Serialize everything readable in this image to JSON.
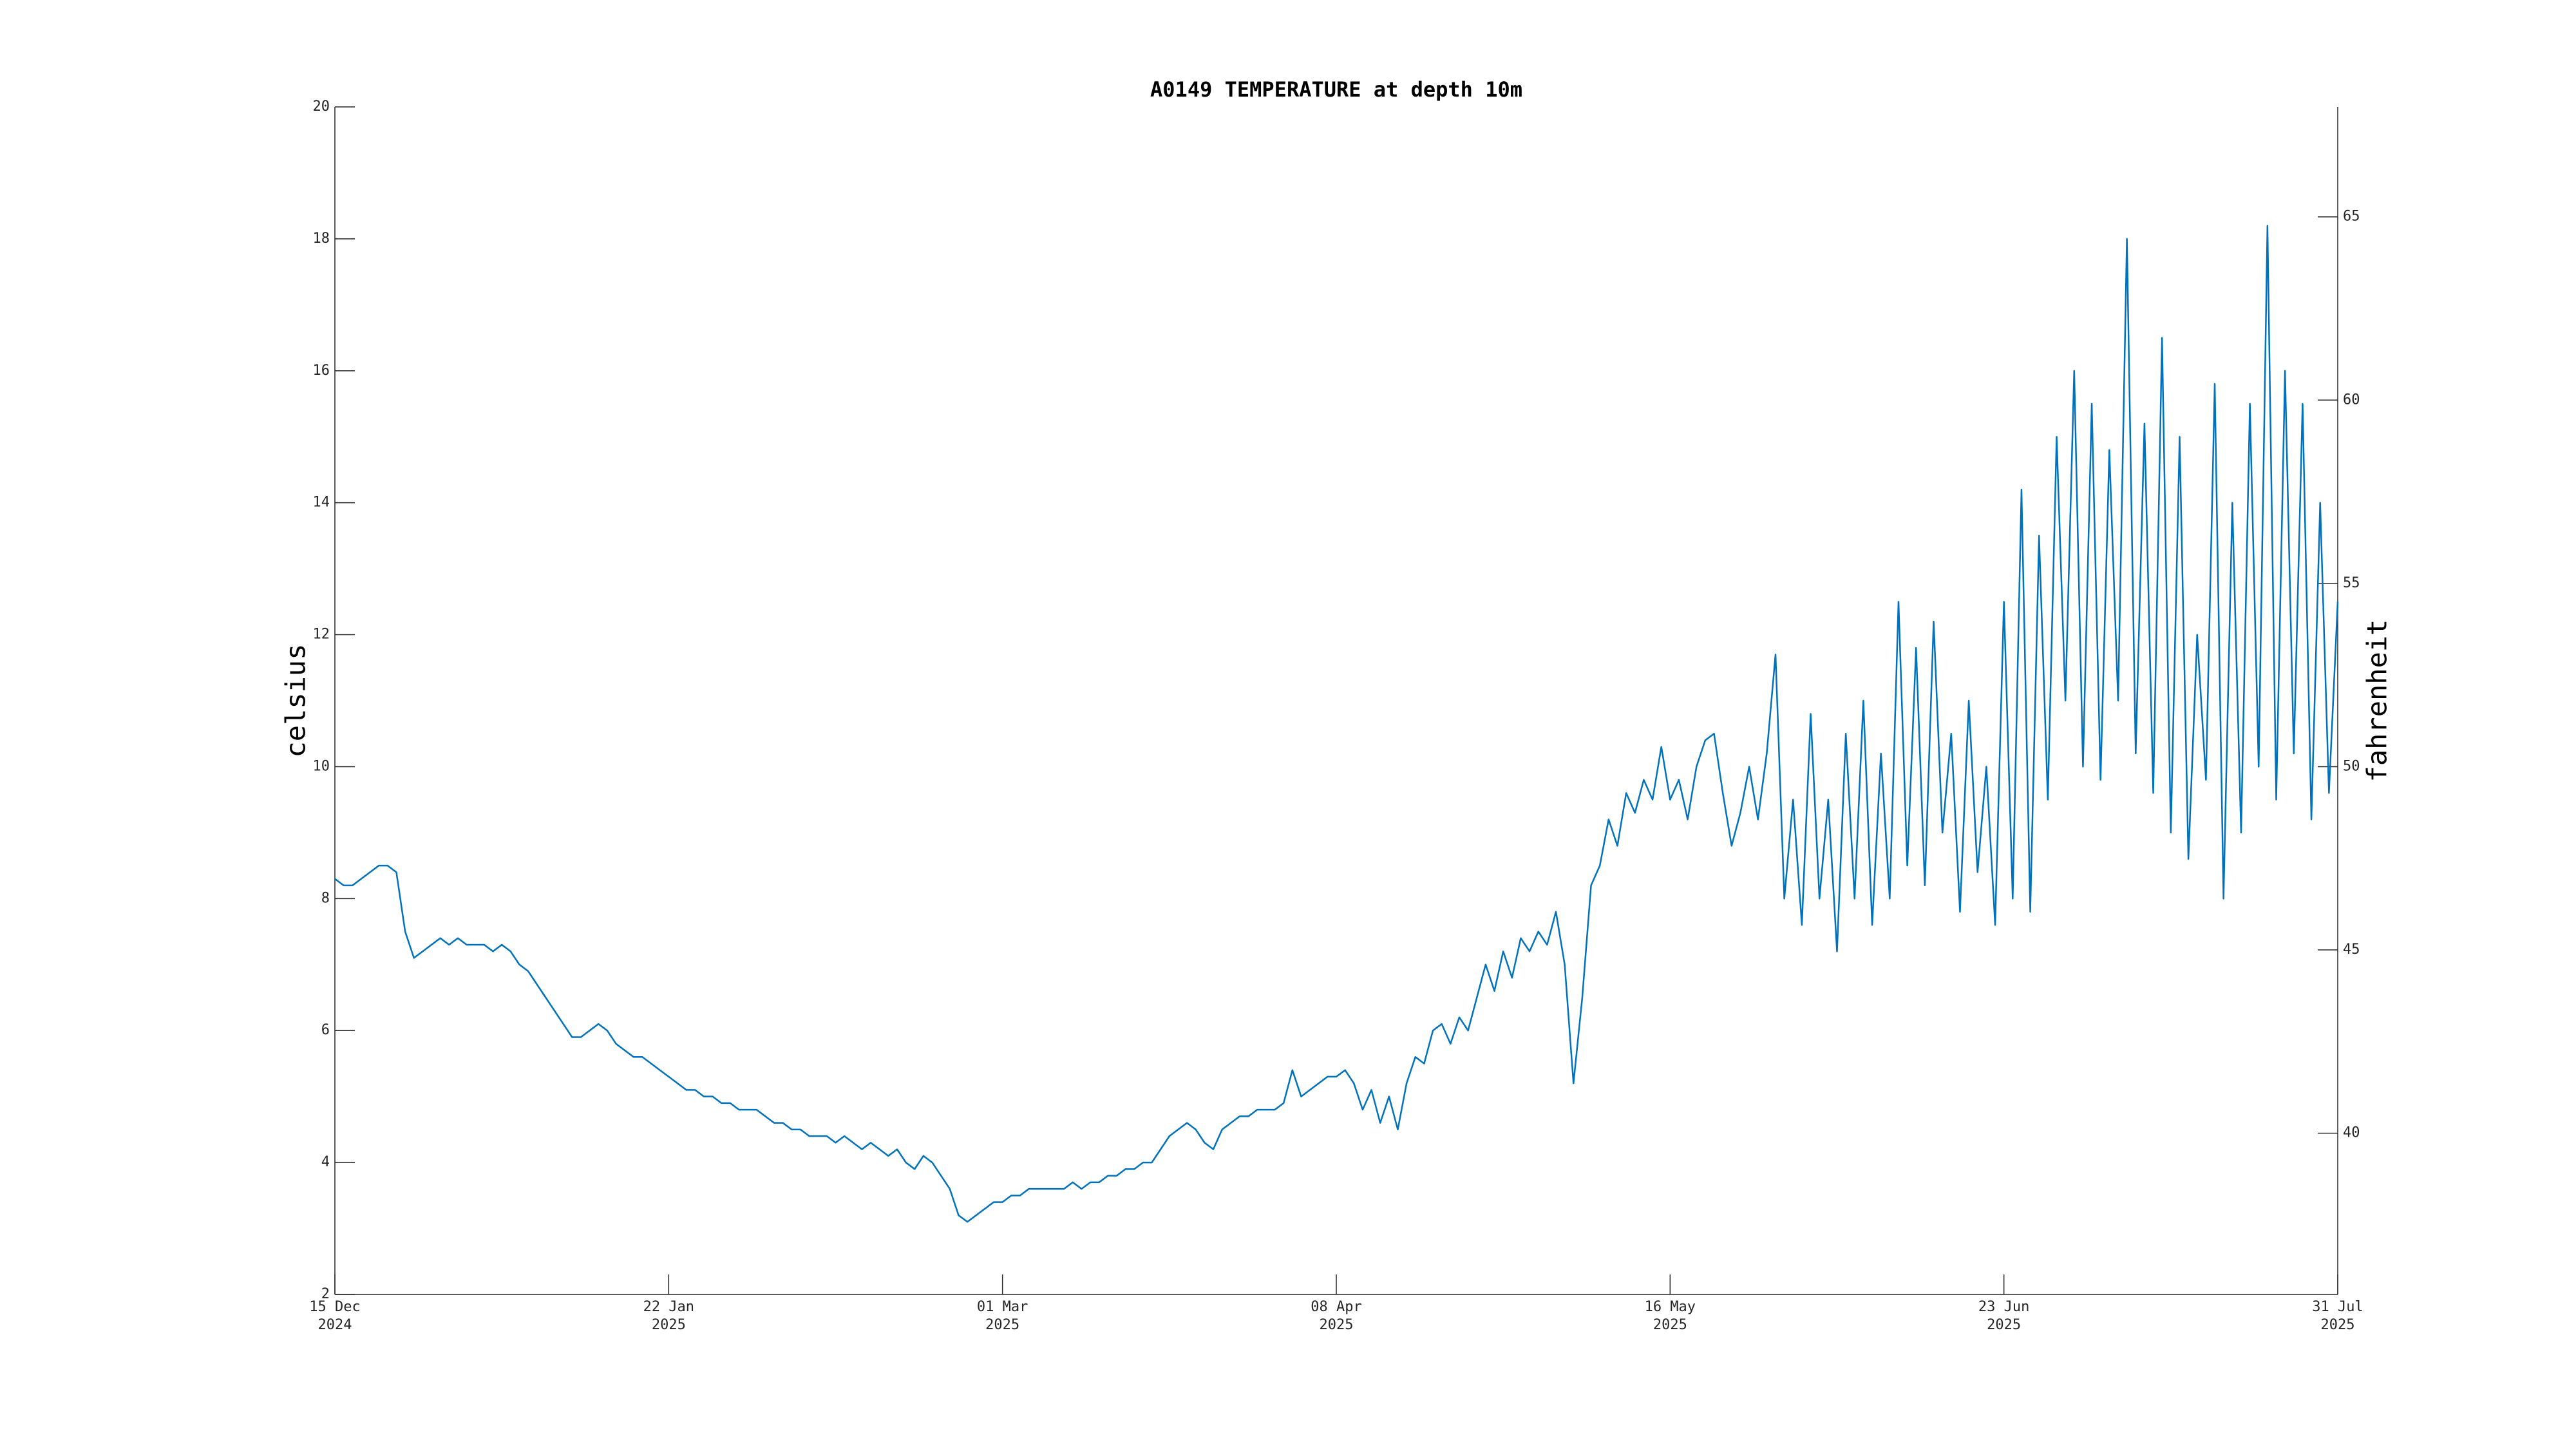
{
  "chart_data": {
    "type": "line",
    "title": "A0149 TEMPERATURE at depth 10m",
    "ylabel": "celsius",
    "y2label": "fahrenheit",
    "color": "#0072bd",
    "ylim": [
      2,
      20
    ],
    "yticks": [
      2,
      4,
      6,
      8,
      10,
      12,
      14,
      16,
      18,
      20
    ],
    "y2lim": [
      35.6,
      68
    ],
    "y2ticks": [
      40,
      45,
      50,
      55,
      60,
      65
    ],
    "xlim": [
      "2024-12-15",
      "2025-07-31"
    ],
    "xticks": [
      {
        "value": "2024-12-15",
        "label": [
          "15 Dec",
          "2024"
        ]
      },
      {
        "value": "2025-01-22",
        "label": [
          "22 Jan",
          "2025"
        ]
      },
      {
        "value": "2025-03-01",
        "label": [
          "01 Mar",
          "2025"
        ]
      },
      {
        "value": "2025-04-08",
        "label": [
          "08 Apr",
          "2025"
        ]
      },
      {
        "value": "2025-05-16",
        "label": [
          "16 May",
          "2025"
        ]
      },
      {
        "value": "2025-06-23",
        "label": [
          "23 Jun",
          "2025"
        ]
      },
      {
        "value": "2025-07-31",
        "label": [
          "31 Jul",
          "2025"
        ]
      }
    ],
    "x": [
      "2024-12-15",
      "2024-12-16",
      "2024-12-17",
      "2024-12-18",
      "2024-12-19",
      "2024-12-20",
      "2024-12-21",
      "2024-12-22",
      "2024-12-23",
      "2024-12-24",
      "2024-12-25",
      "2024-12-26",
      "2024-12-27",
      "2024-12-28",
      "2024-12-29",
      "2024-12-30",
      "2024-12-31",
      "2025-01-01",
      "2025-01-02",
      "2025-01-03",
      "2025-01-04",
      "2025-01-05",
      "2025-01-06",
      "2025-01-07",
      "2025-01-08",
      "2025-01-09",
      "2025-01-10",
      "2025-01-11",
      "2025-01-12",
      "2025-01-13",
      "2025-01-14",
      "2025-01-15",
      "2025-01-16",
      "2025-01-17",
      "2025-01-18",
      "2025-01-19",
      "2025-01-20",
      "2025-01-21",
      "2025-01-22",
      "2025-01-23",
      "2025-01-24",
      "2025-01-25",
      "2025-01-26",
      "2025-01-27",
      "2025-01-28",
      "2025-01-29",
      "2025-01-30",
      "2025-01-31",
      "2025-02-01",
      "2025-02-02",
      "2025-02-03",
      "2025-02-04",
      "2025-02-05",
      "2025-02-06",
      "2025-02-07",
      "2025-02-08",
      "2025-02-09",
      "2025-02-10",
      "2025-02-11",
      "2025-02-12",
      "2025-02-13",
      "2025-02-14",
      "2025-02-15",
      "2025-02-16",
      "2025-02-17",
      "2025-02-18",
      "2025-02-19",
      "2025-02-20",
      "2025-02-21",
      "2025-02-22",
      "2025-02-23",
      "2025-02-24",
      "2025-02-25",
      "2025-02-26",
      "2025-02-27",
      "2025-02-28",
      "2025-03-01",
      "2025-03-02",
      "2025-03-03",
      "2025-03-04",
      "2025-03-05",
      "2025-03-06",
      "2025-03-07",
      "2025-03-08",
      "2025-03-09",
      "2025-03-10",
      "2025-03-11",
      "2025-03-12",
      "2025-03-13",
      "2025-03-14",
      "2025-03-15",
      "2025-03-16",
      "2025-03-17",
      "2025-03-18",
      "2025-03-19",
      "2025-03-20",
      "2025-03-21",
      "2025-03-22",
      "2025-03-23",
      "2025-03-24",
      "2025-03-25",
      "2025-03-26",
      "2025-03-27",
      "2025-03-28",
      "2025-03-29",
      "2025-03-30",
      "2025-03-31",
      "2025-04-01",
      "2025-04-02",
      "2025-04-03",
      "2025-04-04",
      "2025-04-05",
      "2025-04-06",
      "2025-04-07",
      "2025-04-08",
      "2025-04-09",
      "2025-04-10",
      "2025-04-11",
      "2025-04-12",
      "2025-04-13",
      "2025-04-14",
      "2025-04-15",
      "2025-04-16",
      "2025-04-17",
      "2025-04-18",
      "2025-04-19",
      "2025-04-20",
      "2025-04-21",
      "2025-04-22",
      "2025-04-23",
      "2025-04-24",
      "2025-04-25",
      "2025-04-26",
      "2025-04-27",
      "2025-04-28",
      "2025-04-29",
      "2025-04-30",
      "2025-05-01",
      "2025-05-02",
      "2025-05-03",
      "2025-05-04",
      "2025-05-05",
      "2025-05-06",
      "2025-05-07",
      "2025-05-08",
      "2025-05-09",
      "2025-05-10",
      "2025-05-11",
      "2025-05-12",
      "2025-05-13",
      "2025-05-14",
      "2025-05-15",
      "2025-05-16",
      "2025-05-17",
      "2025-05-18",
      "2025-05-19",
      "2025-05-20",
      "2025-05-21",
      "2025-05-22",
      "2025-05-23",
      "2025-05-24",
      "2025-05-25",
      "2025-05-26",
      "2025-05-27",
      "2025-05-28",
      "2025-05-29",
      "2025-05-30",
      "2025-05-31",
      "2025-06-01",
      "2025-06-02",
      "2025-06-03",
      "2025-06-04",
      "2025-06-05",
      "2025-06-06",
      "2025-06-07",
      "2025-06-08",
      "2025-06-09",
      "2025-06-10",
      "2025-06-11",
      "2025-06-12",
      "2025-06-13",
      "2025-06-14",
      "2025-06-15",
      "2025-06-16",
      "2025-06-17",
      "2025-06-18",
      "2025-06-19",
      "2025-06-20",
      "2025-06-21",
      "2025-06-22",
      "2025-06-23",
      "2025-06-24",
      "2025-06-25",
      "2025-06-26",
      "2025-06-27",
      "2025-06-28",
      "2025-06-29",
      "2025-06-30",
      "2025-07-01",
      "2025-07-02",
      "2025-07-03",
      "2025-07-04",
      "2025-07-05",
      "2025-07-06",
      "2025-07-07",
      "2025-07-08",
      "2025-07-09",
      "2025-07-10",
      "2025-07-11",
      "2025-07-12",
      "2025-07-13",
      "2025-07-14",
      "2025-07-15",
      "2025-07-16",
      "2025-07-17",
      "2025-07-18",
      "2025-07-19",
      "2025-07-20",
      "2025-07-21",
      "2025-07-22",
      "2025-07-23",
      "2025-07-24",
      "2025-07-25",
      "2025-07-26",
      "2025-07-27",
      "2025-07-28",
      "2025-07-29",
      "2025-07-30",
      "2025-07-31"
    ],
    "values": [
      8.3,
      8.2,
      8.2,
      8.3,
      8.4,
      8.5,
      8.5,
      8.4,
      7.5,
      7.1,
      7.2,
      7.3,
      7.4,
      7.3,
      7.4,
      7.3,
      7.3,
      7.3,
      7.2,
      7.3,
      7.2,
      7.0,
      6.9,
      6.7,
      6.5,
      6.3,
      6.1,
      5.9,
      5.9,
      6.0,
      6.1,
      6.0,
      5.8,
      5.7,
      5.6,
      5.6,
      5.5,
      5.4,
      5.3,
      5.2,
      5.1,
      5.1,
      5.0,
      5.0,
      4.9,
      4.9,
      4.8,
      4.8,
      4.8,
      4.7,
      4.6,
      4.6,
      4.5,
      4.5,
      4.4,
      4.4,
      4.4,
      4.3,
      4.4,
      4.3,
      4.2,
      4.3,
      4.2,
      4.1,
      4.2,
      4.0,
      3.9,
      4.1,
      4.0,
      3.8,
      3.6,
      3.2,
      3.1,
      3.2,
      3.3,
      3.4,
      3.4,
      3.5,
      3.5,
      3.6,
      3.6,
      3.6,
      3.6,
      3.6,
      3.7,
      3.6,
      3.7,
      3.7,
      3.8,
      3.8,
      3.9,
      3.9,
      4.0,
      4.0,
      4.2,
      4.4,
      4.5,
      4.6,
      4.5,
      4.3,
      4.2,
      4.5,
      4.6,
      4.7,
      4.7,
      4.8,
      4.8,
      4.8,
      4.9,
      5.4,
      5.0,
      5.1,
      5.2,
      5.3,
      5.3,
      5.4,
      5.2,
      4.8,
      5.1,
      4.6,
      5.0,
      4.5,
      5.2,
      5.6,
      5.5,
      6.0,
      6.1,
      5.8,
      6.2,
      6.0,
      6.5,
      7.0,
      6.6,
      7.2,
      6.8,
      7.4,
      7.2,
      7.5,
      7.3,
      7.8,
      7.0,
      5.2,
      6.5,
      8.2,
      8.5,
      9.2,
      8.8,
      9.6,
      9.3,
      9.8,
      9.5,
      10.3,
      9.5,
      9.8,
      9.2,
      10.0,
      10.4,
      10.5,
      9.6,
      8.8,
      9.3,
      10.0,
      9.2,
      10.2,
      11.7,
      8.0,
      9.5,
      7.6,
      10.8,
      8.0,
      9.5,
      7.2,
      10.5,
      8.0,
      11.0,
      7.6,
      10.2,
      8.0,
      12.5,
      8.5,
      11.8,
      8.2,
      12.2,
      9.0,
      10.5,
      7.8,
      11.0,
      8.4,
      10.0,
      7.6,
      12.5,
      8.0,
      14.2,
      7.8,
      13.5,
      9.5,
      15.0,
      11.0,
      16.0,
      10.0,
      15.5,
      9.8,
      14.8,
      11.0,
      18.0,
      10.2,
      15.2,
      9.6,
      16.5,
      9.0,
      15.0,
      8.6,
      12.0,
      9.8,
      15.8,
      8.0,
      14.0,
      9.0,
      15.5,
      10.0,
      18.2,
      9.5,
      16.0,
      10.2,
      15.5,
      9.2,
      14.0,
      9.6,
      12.5
    ]
  }
}
